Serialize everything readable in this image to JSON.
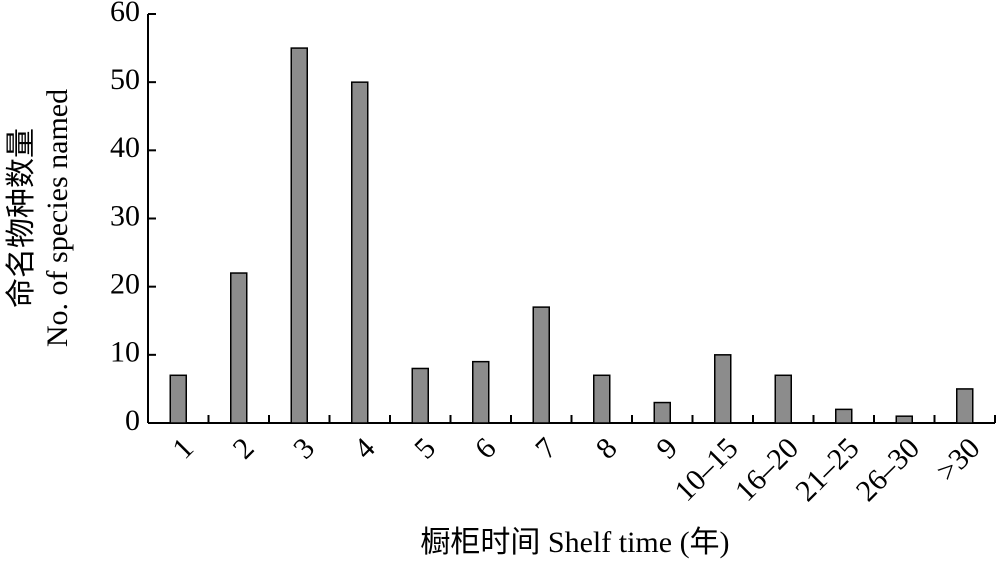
{
  "chart_data": {
    "type": "bar",
    "x_label": "橱柜时间 Shelf time (年)",
    "y_label_lines": [
      "命名物种数量",
      "No. of species named"
    ],
    "categories": [
      "1",
      "2",
      "3",
      "4",
      "5",
      "6",
      "7",
      "8",
      "9",
      "10–15",
      "16–20",
      "21–25",
      "26–30",
      ">30"
    ],
    "values": [
      7,
      22,
      55,
      50,
      8,
      9,
      17,
      7,
      3,
      10,
      7,
      2,
      1,
      5
    ],
    "color": "#8c8c8c",
    "ylim": [
      0,
      60
    ],
    "yticks": [
      0,
      10,
      20,
      30,
      40,
      50,
      60
    ],
    "grid": false
  }
}
